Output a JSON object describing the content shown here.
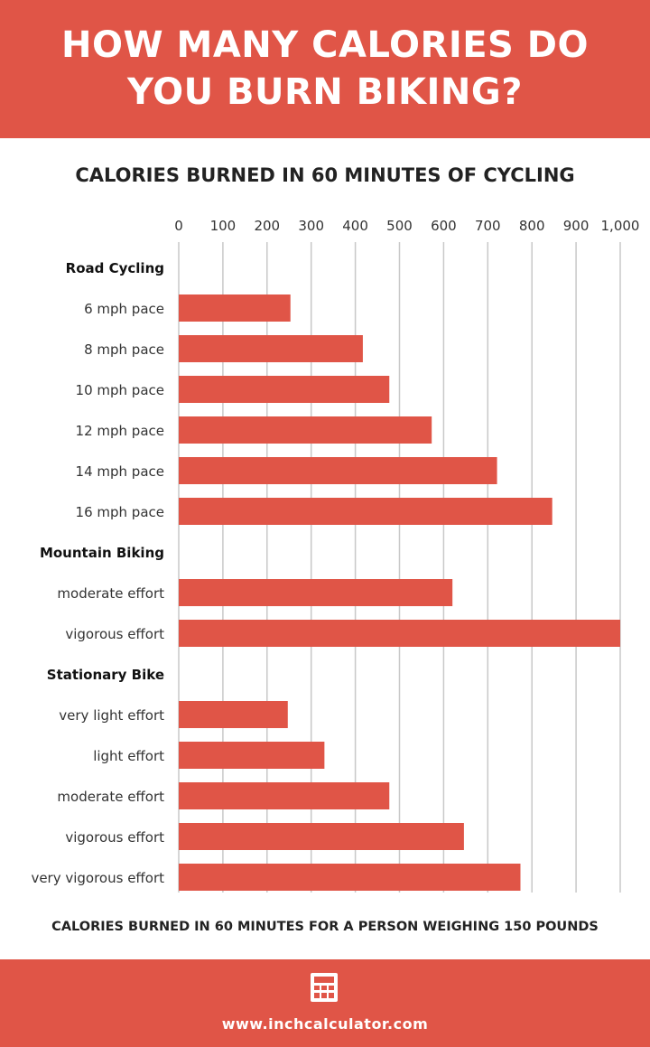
{
  "header": {
    "title_line1": "HOW MANY CALORIES DO",
    "title_line2": "YOU BURN BIKING?"
  },
  "footer": {
    "url": "www.inchcalculator.com",
    "icon": "calculator-icon"
  },
  "colors": {
    "accent": "#e05547",
    "grid": "#c8c8c8",
    "text": "#222222"
  },
  "chart_data": {
    "type": "bar",
    "orientation": "horizontal",
    "title": "CALORIES BURNED IN 60 MINUTES OF CYCLING",
    "xlabel": "CALORIES BURNED IN 60 MINUTES FOR A PERSON WEIGHING 150 POUNDS",
    "xlim": [
      0,
      1000
    ],
    "ticks": [
      "0",
      "100",
      "200",
      "300",
      "400",
      "500",
      "600",
      "700",
      "800",
      "900",
      "1,000"
    ],
    "grid": true,
    "groups": [
      {
        "name": "Road Cycling",
        "categories": [
          "6 mph pace",
          "8 mph pace",
          "10 mph pace",
          "12 mph pace",
          "14 mph pace",
          "16 mph pace"
        ],
        "values": [
          253,
          417,
          477,
          573,
          721,
          846
        ]
      },
      {
        "name": "Mountain Biking",
        "categories": [
          "moderate effort",
          "vigorous effort"
        ],
        "values": [
          620,
          1000
        ]
      },
      {
        "name": "Stationary Bike",
        "categories": [
          "very light effort",
          "light effort",
          "moderate effort",
          "vigorous effort",
          "very vigorous effort"
        ],
        "values": [
          247,
          330,
          477,
          646,
          774
        ]
      }
    ]
  }
}
